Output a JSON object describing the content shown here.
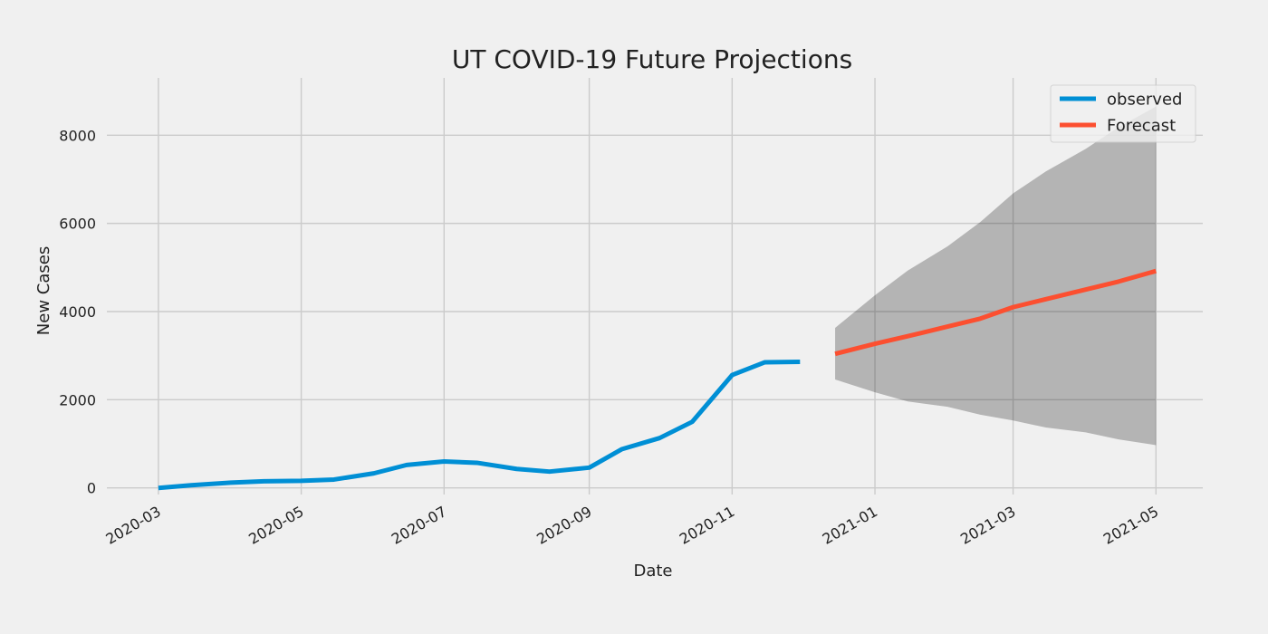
{
  "chart_data": {
    "type": "line",
    "title": "UT COVID-19 Future Projections",
    "xlabel": "Date",
    "ylabel": "New Cases",
    "x_axis_type": "date",
    "xlim": [
      "2020-02-08",
      "2021-05-21"
    ],
    "ylim": [
      -150,
      9300
    ],
    "x_ticks": [
      "2020-03-01",
      "2020-05-01",
      "2020-07-01",
      "2020-09-01",
      "2020-11-01",
      "2021-01-01",
      "2021-03-01",
      "2021-05-01"
    ],
    "x_tick_labels": [
      "2020-03",
      "2020-05",
      "2020-07",
      "2020-09",
      "2020-11",
      "2021-01",
      "2021-03",
      "2021-05"
    ],
    "y_ticks": [
      0,
      2000,
      4000,
      6000,
      8000
    ],
    "y_tick_labels": [
      "0",
      "2000",
      "4000",
      "6000",
      "8000"
    ],
    "grid": true,
    "legend_position": "top-right",
    "series": [
      {
        "name": "observed",
        "color": "#008fd5",
        "points": [
          {
            "x": "2020-03-01",
            "y": 0
          },
          {
            "x": "2020-03-15",
            "y": 60
          },
          {
            "x": "2020-04-01",
            "y": 120
          },
          {
            "x": "2020-04-15",
            "y": 150
          },
          {
            "x": "2020-05-01",
            "y": 160
          },
          {
            "x": "2020-05-15",
            "y": 190
          },
          {
            "x": "2020-06-01",
            "y": 330
          },
          {
            "x": "2020-06-15",
            "y": 520
          },
          {
            "x": "2020-07-01",
            "y": 600
          },
          {
            "x": "2020-07-15",
            "y": 570
          },
          {
            "x": "2020-08-01",
            "y": 430
          },
          {
            "x": "2020-08-15",
            "y": 370
          },
          {
            "x": "2020-09-01",
            "y": 460
          },
          {
            "x": "2020-09-15",
            "y": 880
          },
          {
            "x": "2020-10-01",
            "y": 1130
          },
          {
            "x": "2020-10-15",
            "y": 1500
          },
          {
            "x": "2020-11-01",
            "y": 2560
          },
          {
            "x": "2020-11-15",
            "y": 2850
          },
          {
            "x": "2020-11-30",
            "y": 2860
          }
        ]
      },
      {
        "name": "Forecast",
        "color": "#fc4f30",
        "points": [
          {
            "x": "2020-12-15",
            "y": 3040
          },
          {
            "x": "2021-01-01",
            "y": 3270
          },
          {
            "x": "2021-01-15",
            "y": 3440
          },
          {
            "x": "2021-02-01",
            "y": 3660
          },
          {
            "x": "2021-02-15",
            "y": 3840
          },
          {
            "x": "2021-03-01",
            "y": 4100
          },
          {
            "x": "2021-03-15",
            "y": 4280
          },
          {
            "x": "2021-04-01",
            "y": 4500
          },
          {
            "x": "2021-04-15",
            "y": 4680
          },
          {
            "x": "2021-05-01",
            "y": 4920
          }
        ]
      }
    ],
    "confidence_band": {
      "color": "#000000",
      "opacity": 0.25,
      "points": [
        {
          "x": "2020-12-15",
          "lower": 2460,
          "upper": 3630
        },
        {
          "x": "2021-01-01",
          "lower": 2170,
          "upper": 4370
        },
        {
          "x": "2021-01-15",
          "lower": 1960,
          "upper": 4930
        },
        {
          "x": "2021-02-01",
          "lower": 1840,
          "upper": 5480
        },
        {
          "x": "2021-02-15",
          "lower": 1660,
          "upper": 6030
        },
        {
          "x": "2021-03-01",
          "lower": 1530,
          "upper": 6680
        },
        {
          "x": "2021-03-15",
          "lower": 1370,
          "upper": 7180
        },
        {
          "x": "2021-04-01",
          "lower": 1260,
          "upper": 7690
        },
        {
          "x": "2021-04-15",
          "lower": 1100,
          "upper": 8180
        },
        {
          "x": "2021-05-01",
          "lower": 970,
          "upper": 8650
        }
      ]
    }
  }
}
